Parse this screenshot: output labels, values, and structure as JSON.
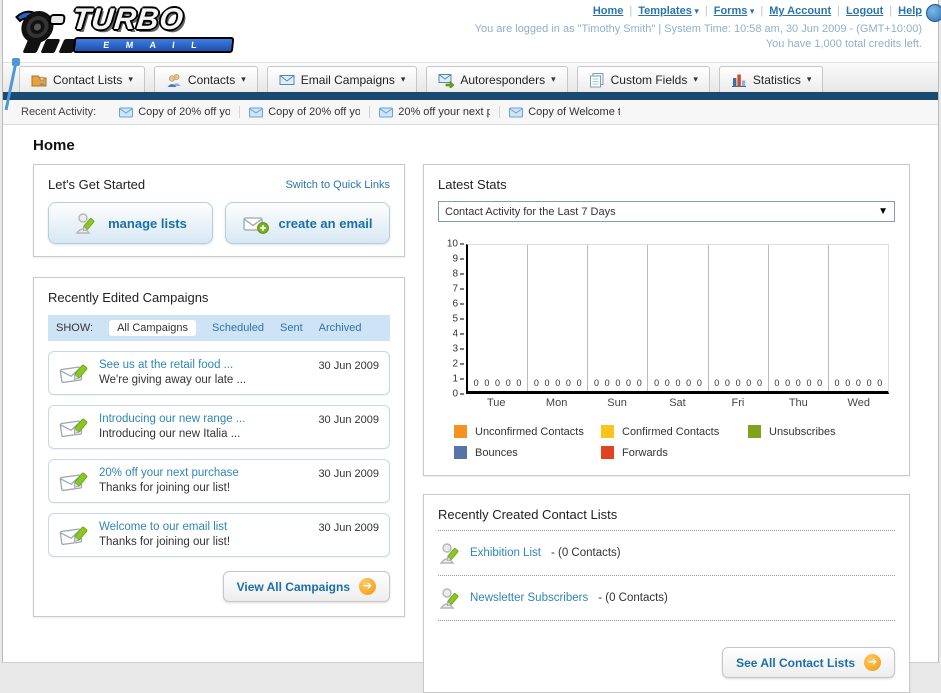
{
  "header": {
    "logo_title": "TURBO",
    "logo_subtitle": "E M A I L",
    "links": [
      {
        "label": "Home",
        "dropdown": false
      },
      {
        "label": "Templates",
        "dropdown": true
      },
      {
        "label": "Forms",
        "dropdown": true
      },
      {
        "label": "My Account",
        "dropdown": false
      },
      {
        "label": "Logout",
        "dropdown": false
      },
      {
        "label": "Help",
        "dropdown": false
      }
    ],
    "login_line": "You are logged in as \"Timothy Smith\" | System Time: 10:58 am, 30 Jun 2009 - (GMT+10:00)",
    "credits_line": "You have 1,000 total credits left."
  },
  "nav": {
    "items": [
      {
        "label": "Contact Lists",
        "icon": "contact-lists-icon"
      },
      {
        "label": "Contacts",
        "icon": "contacts-icon"
      },
      {
        "label": "Email Campaigns",
        "icon": "email-campaigns-icon"
      },
      {
        "label": "Autoresponders",
        "icon": "autoresponders-icon"
      },
      {
        "label": "Custom Fields",
        "icon": "custom-fields-icon"
      },
      {
        "label": "Statistics",
        "icon": "statistics-icon"
      }
    ]
  },
  "recent_activity": {
    "label": "Recent Activity:",
    "items": [
      "Copy of 20% off yo",
      "Copy of 20% off yo",
      "20% off your next p",
      "Copy of Welcome to"
    ]
  },
  "page_title": "Home",
  "get_started": {
    "title": "Let's Get Started",
    "switch_link": "Switch to Quick Links",
    "buttons": [
      {
        "label": "manage lists",
        "icon": "manage-lists-icon"
      },
      {
        "label": "create an email",
        "icon": "create-email-icon"
      }
    ]
  },
  "campaigns": {
    "title": "Recently Edited Campaigns",
    "show_label": "SHOW:",
    "tabs": [
      "All Campaigns",
      "Scheduled",
      "Sent",
      "Archived"
    ],
    "active_tab": "All Campaigns",
    "rows": [
      {
        "title": "See us at the retail food ...",
        "subtitle": "We're giving away our late ...",
        "date": "30 Jun 2009"
      },
      {
        "title": "Introducing our new range ...",
        "subtitle": "Introducing our new Italia ...",
        "date": "30 Jun 2009"
      },
      {
        "title": "20% off your next purchase",
        "subtitle": "Thanks for joining our list!",
        "date": "30 Jun 2009"
      },
      {
        "title": "Welcome to our email list",
        "subtitle": "Thanks for joining our list!",
        "date": "30 Jun 2009"
      }
    ],
    "view_all_label": "View All Campaigns"
  },
  "stats": {
    "title": "Latest Stats",
    "dropdown_value": "Contact Activity for the Last 7 Days",
    "chart_data": {
      "type": "bar",
      "title": "Contact Activity for the Last 7 Days",
      "categories": [
        "Tue",
        "Mon",
        "Sun",
        "Sat",
        "Fri",
        "Thu",
        "Wed"
      ],
      "series": [
        {
          "name": "Unconfirmed Contacts",
          "color": "#f5931e",
          "values": [
            0,
            0,
            0,
            0,
            0,
            0,
            0
          ]
        },
        {
          "name": "Confirmed Contacts",
          "color": "#fbc31c",
          "values": [
            0,
            0,
            0,
            0,
            0,
            0,
            0
          ]
        },
        {
          "name": "Unsubscribes",
          "color": "#7fa41c",
          "values": [
            0,
            0,
            0,
            0,
            0,
            0,
            0
          ]
        },
        {
          "name": "Bounces",
          "color": "#5674a7",
          "values": [
            0,
            0,
            0,
            0,
            0,
            0,
            0
          ]
        },
        {
          "name": "Forwards",
          "color": "#e2431e",
          "values": [
            0,
            0,
            0,
            0,
            0,
            0,
            0
          ]
        }
      ],
      "ylim": [
        0,
        10
      ],
      "yticks": [
        10,
        9,
        8,
        7,
        6,
        5,
        4,
        3,
        2,
        1,
        0
      ],
      "grid": "vertical-group-dividers",
      "legend_position": "bottom",
      "value_labels_shown": true
    }
  },
  "contact_lists": {
    "title": "Recently Created Contact Lists",
    "items": [
      {
        "name": "Exhibition List",
        "detail": "- (0 Contacts)"
      },
      {
        "name": "Newsletter Subscribers",
        "detail": "- (0 Contacts)"
      }
    ],
    "see_all_label": "See All Contact Lists"
  }
}
